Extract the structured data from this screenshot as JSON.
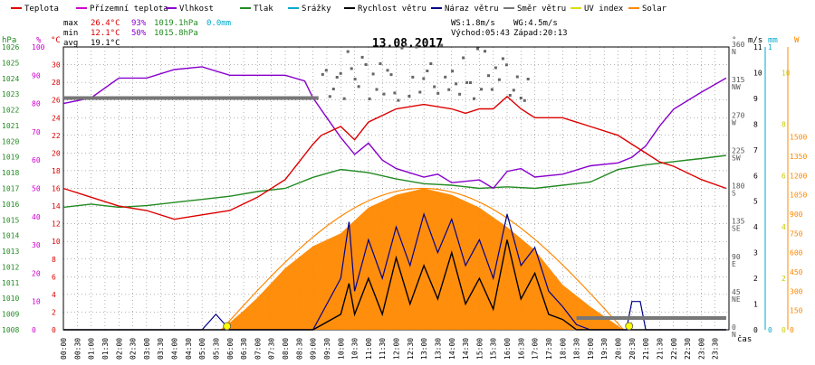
{
  "legend": [
    {
      "label": "Teplota",
      "color": "#dd0000"
    },
    {
      "label": "Přízemní teplota",
      "color": "#cc00cc"
    },
    {
      "label": "Vlhkost",
      "color": "#8800cc"
    },
    {
      "label": "Tlak",
      "color": "#228b22"
    },
    {
      "label": "Srážky",
      "color": "#00aacc"
    },
    {
      "label": "Rychlost větru",
      "color": "#000000"
    },
    {
      "label": "Náraz větru",
      "color": "#000088"
    },
    {
      "label": "Směr větru",
      "color": "#777777"
    },
    {
      "label": "UV index",
      "color": "#dddd00"
    },
    {
      "label": "Solar",
      "color": "#ff8800"
    }
  ],
  "stats": {
    "max_label": "max",
    "max_temp": "26.4°C",
    "max_hum": "93%",
    "max_press": "1019.1hPa",
    "max_rain": "0.0mm",
    "min_label": "min",
    "min_temp": "12.1°C",
    "min_hum": "50%",
    "min_press": "1015.8hPa",
    "avg_label": "avg",
    "avg_temp": "19.1°C",
    "ws": "WS:1.8m/s",
    "wg": "WG:4.5m/s",
    "sunrise": "Východ:05:43",
    "sunset": "Západ:20:13"
  },
  "chart_data": {
    "type": "line",
    "title": "13.08.2017",
    "xlabel": "čas",
    "x_ticks": [
      "00:00",
      "00:30",
      "01:00",
      "01:30",
      "02:00",
      "02:30",
      "03:00",
      "03:30",
      "04:00",
      "04:30",
      "05:00",
      "05:30",
      "06:00",
      "06:30",
      "07:00",
      "07:30",
      "08:00",
      "08:30",
      "09:00",
      "09:30",
      "10:00",
      "10:30",
      "11:00",
      "11:30",
      "12:00",
      "12:30",
      "13:00",
      "13:30",
      "14:00",
      "14:30",
      "15:00",
      "15:30",
      "16:00",
      "16:30",
      "17:00",
      "17:30",
      "18:00",
      "18:30",
      "19:00",
      "19:30",
      "20:00",
      "20:30",
      "21:00",
      "21:30",
      "22:00",
      "22:30",
      "23:00",
      "23:30"
    ],
    "axes_left": {
      "press": {
        "unit": "hPa",
        "range": [
          1008,
          1026
        ],
        "ticks": [
          "1008",
          "1009",
          "1010",
          "1011",
          "1012",
          "1013",
          "1014",
          "1015",
          "1016",
          "1017",
          "1018",
          "1019",
          "1020",
          "1021",
          "1022",
          "1023",
          "1024",
          "1025",
          "1026"
        ]
      },
      "hum": {
        "unit": "%",
        "range": [
          0,
          100
        ],
        "ticks": [
          "0",
          "10",
          "20",
          "30",
          "40",
          "50",
          "60",
          "70",
          "80",
          "90",
          "100"
        ]
      },
      "temp": {
        "unit": "°C",
        "range": [
          0,
          32
        ],
        "ticks": [
          "0",
          "2",
          "4",
          "6",
          "8",
          "10",
          "12",
          "14",
          "16",
          "18",
          "20",
          "22",
          "24",
          "26",
          "28",
          "30"
        ]
      }
    },
    "axes_right": {
      "dir": {
        "unit": "°",
        "range": [
          0,
          360
        ],
        "labels": [
          "0",
          "N",
          "45",
          "NE",
          "90",
          "E",
          "135",
          "SE",
          "180",
          "S",
          "225",
          "SW",
          "270",
          "W",
          "315",
          "NW",
          "360",
          "N"
        ]
      },
      "wind": {
        "unit": "m/s",
        "range": [
          0,
          11
        ],
        "ticks": [
          "0",
          "1",
          "2",
          "3",
          "4",
          "5",
          "6",
          "7",
          "8",
          "9",
          "10",
          "11"
        ]
      },
      "rain": {
        "unit": "mm",
        "range": [
          0,
          1
        ],
        "ticks": [
          "0",
          "1"
        ]
      },
      "uv": {
        "unit": "",
        "range": [
          0,
          11
        ],
        "ticks": [
          "0",
          "2",
          "4",
          "6",
          "8",
          "10"
        ]
      },
      "solar": {
        "unit": "W",
        "range": [
          0,
          2200
        ],
        "ticks": [
          "0",
          "150",
          "300",
          "450",
          "600",
          "750",
          "900",
          "1050",
          "1200",
          "1350",
          "1500"
        ]
      }
    },
    "series": {
      "temp": {
        "name": "Teplota",
        "x": [
          0,
          1,
          2,
          3,
          4,
          5,
          6,
          7,
          8,
          8.5,
          9,
          9.3,
          10,
          10.5,
          11,
          12,
          13,
          14,
          14.5,
          15,
          15.5,
          16,
          16.5,
          17,
          18,
          19,
          20,
          20.5,
          21,
          21.5,
          22,
          23,
          23.9
        ],
        "y": [
          16,
          15,
          14,
          13.5,
          12.5,
          13,
          13.5,
          15,
          17,
          19,
          21,
          22,
          23,
          21.5,
          23.5,
          25,
          25.5,
          25,
          24.5,
          25,
          25,
          26.4,
          25,
          24,
          24,
          23,
          22,
          21,
          20,
          19,
          18.5,
          17,
          16
        ]
      },
      "ground_temp": {
        "name": "Přízemní teplota",
        "x": [
          0,
          1,
          2,
          3,
          4,
          5,
          6,
          7,
          8,
          8.5,
          9,
          9.3,
          10,
          10.5,
          11,
          12,
          13,
          14,
          14.5,
          15,
          15.5,
          16,
          16.5,
          17,
          18,
          19,
          20,
          20.5,
          21,
          21.5,
          22,
          23,
          23.9
        ],
        "y": [
          16,
          15,
          14,
          13.5,
          12.5,
          13,
          13.5,
          15,
          17,
          19,
          21,
          22,
          23,
          21.5,
          23.5,
          25,
          25.5,
          25,
          24.5,
          25,
          25,
          26.4,
          25,
          24,
          24,
          23,
          22,
          21,
          20,
          19,
          18.5,
          17,
          16
        ]
      },
      "hum": {
        "name": "Vlhkost",
        "x": [
          0,
          1,
          2,
          3,
          4,
          5,
          6,
          7,
          8,
          8.7,
          9,
          9.5,
          10,
          10.5,
          11,
          11.5,
          12,
          13,
          13.5,
          14,
          15,
          15.5,
          16,
          16.5,
          17,
          18,
          19,
          20,
          20.5,
          21,
          21.5,
          22,
          23,
          23.9
        ],
        "y": [
          80,
          82,
          89,
          89,
          92,
          93,
          90,
          90,
          90,
          88,
          82,
          75,
          68,
          62,
          66,
          60,
          57,
          54,
          55,
          52,
          53,
          50,
          56,
          57,
          54,
          55,
          58,
          59,
          61,
          65,
          72,
          78,
          84,
          89
        ]
      },
      "press": {
        "name": "Tlak",
        "x": [
          0,
          1,
          2,
          3,
          4,
          5,
          6,
          7,
          8,
          9,
          10,
          11,
          12,
          13,
          14,
          15,
          16,
          17,
          18,
          19,
          20,
          21,
          22,
          23,
          23.9
        ],
        "y": [
          1015.8,
          1016.0,
          1015.8,
          1015.9,
          1016.1,
          1016.3,
          1016.5,
          1016.8,
          1017.0,
          1017.7,
          1018.2,
          1018.0,
          1017.6,
          1017.3,
          1017.2,
          1017.0,
          1017.1,
          1017.0,
          1017.2,
          1017.4,
          1018.2,
          1018.5,
          1018.7,
          1018.9,
          1019.1
        ]
      },
      "rain": {
        "name": "Srážky",
        "x": [
          0,
          23.9
        ],
        "y": [
          0,
          0
        ]
      },
      "wind_speed": {
        "name": "Rychlost větru",
        "x": [
          0,
          5,
          6,
          9,
          10,
          10.3,
          10.5,
          11,
          11.5,
          12,
          12.5,
          13,
          13.5,
          14,
          14.5,
          15,
          15.5,
          16,
          16.5,
          17,
          17.5,
          18,
          18.5,
          20,
          20.5,
          21,
          21.5,
          23.9
        ],
        "y": [
          0,
          0,
          0,
          0,
          0.6,
          1.8,
          0.6,
          2.0,
          0.6,
          2.8,
          1.0,
          2.5,
          1.2,
          3.0,
          1.0,
          2.0,
          0.8,
          3.5,
          1.2,
          2.2,
          0.6,
          0.4,
          0,
          0,
          0,
          0,
          0,
          0
        ]
      },
      "wind_gust": {
        "name": "Náraz větru",
        "x": [
          0,
          5,
          5.5,
          6,
          9,
          10,
          10.3,
          10.5,
          11,
          11.5,
          12,
          12.5,
          13,
          13.5,
          14,
          14.5,
          15,
          15.5,
          16,
          16.5,
          17,
          17.5,
          18,
          18.5,
          19,
          20.3,
          20.5,
          20.8,
          21,
          23.9
        ],
        "y": [
          0,
          0,
          0.6,
          0,
          0,
          2.0,
          4.2,
          1.5,
          3.5,
          2.0,
          4.0,
          2.5,
          4.5,
          3.0,
          4.3,
          2.5,
          3.5,
          2.0,
          4.5,
          2.5,
          3.2,
          1.5,
          0.9,
          0.2,
          0,
          0,
          1.1,
          1.1,
          0,
          0
        ]
      },
      "wind_dir": {
        "name": "Směr větru",
        "x": [
          0,
          9.2,
          9.3,
          18.3,
          18.5,
          23.9
        ],
        "y": [
          295,
          295,
          null,
          null,
          15,
          15
        ]
      },
      "uv": {
        "name": "UV index",
        "x": [
          5.9,
          20.4
        ],
        "y": [
          0,
          0
        ]
      },
      "solar": {
        "name": "Solar",
        "x": [
          5.7,
          6.5,
          7,
          8,
          9,
          10,
          11,
          12,
          13,
          14,
          15,
          16,
          17,
          18,
          19,
          20,
          20.2
        ],
        "y": [
          0,
          150,
          250,
          480,
          650,
          750,
          950,
          1050,
          1100,
          1050,
          950,
          800,
          620,
          350,
          180,
          30,
          0
        ]
      }
    }
  }
}
